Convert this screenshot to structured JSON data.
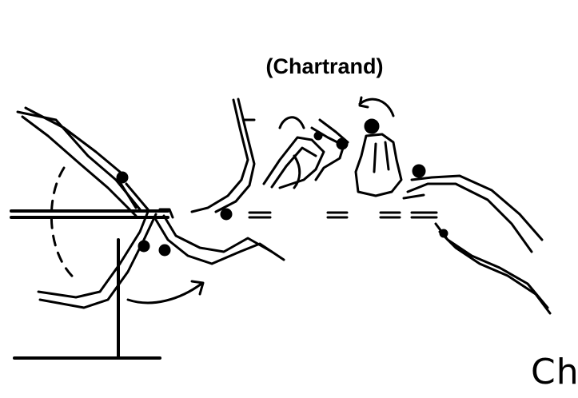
{
  "skill": {
    "name": "(Chartrand)",
    "code": "Ch"
  },
  "icons": {
    "apparatus": "parallel-bars-icon",
    "motion": "rotation-arrow-icon",
    "figure": "gymnast-figure-icon"
  },
  "colors": {
    "ink": "#000000",
    "background": "#ffffff"
  }
}
